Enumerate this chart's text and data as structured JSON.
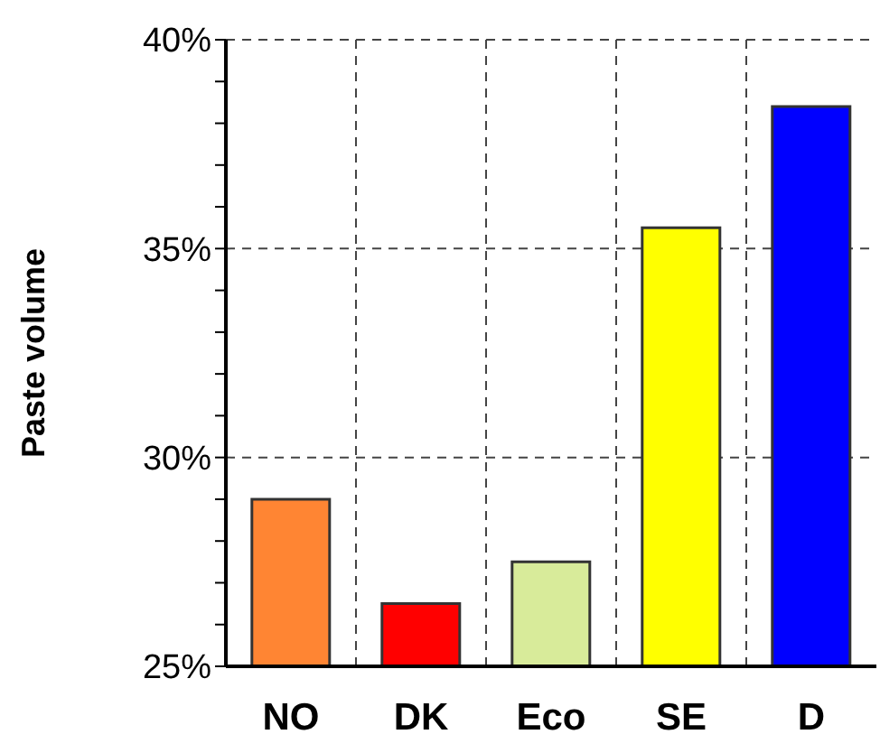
{
  "chart_data": {
    "type": "bar",
    "ylabel": "Paste volume",
    "categories": [
      "NO",
      "DK",
      "Eco",
      "SE",
      "D"
    ],
    "values": [
      29.0,
      26.5,
      27.5,
      35.5,
      38.4
    ],
    "colors": [
      "#ff8533",
      "#ff0000",
      "#d8eb9a",
      "#ffff00",
      "#0000ff"
    ],
    "ylim": [
      25,
      40
    ],
    "yticks": [
      {
        "value": 25,
        "label": "25%"
      },
      {
        "value": 26,
        "label": null
      },
      {
        "value": 27,
        "label": null
      },
      {
        "value": 28,
        "label": null
      },
      {
        "value": 29,
        "label": null
      },
      {
        "value": 30,
        "label": "30%"
      },
      {
        "value": 31,
        "label": null
      },
      {
        "value": 32,
        "label": null
      },
      {
        "value": 33,
        "label": null
      },
      {
        "value": 34,
        "label": null
      },
      {
        "value": 35,
        "label": "35%"
      },
      {
        "value": 36,
        "label": null
      },
      {
        "value": 37,
        "label": null
      },
      {
        "value": 38,
        "label": null
      },
      {
        "value": 39,
        "label": null
      },
      {
        "value": 40,
        "label": "40%"
      }
    ],
    "grid": true
  }
}
